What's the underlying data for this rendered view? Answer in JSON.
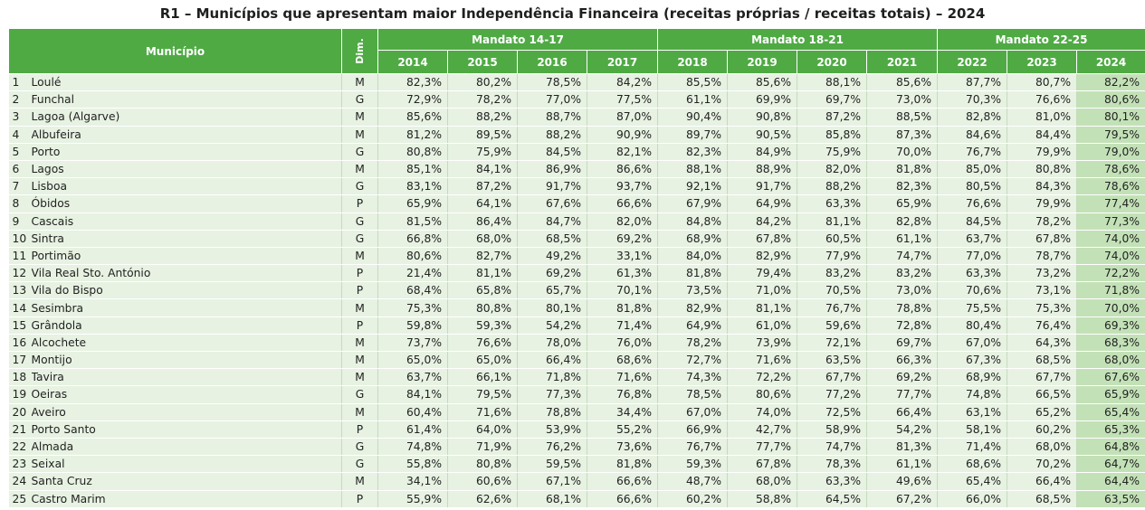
{
  "title": "R1 – Municípios que apresentam maior Independência Financeira (receitas próprias / receitas totais) – 2024",
  "colors": {
    "header_green": "#4faa44",
    "row_bg": "#e7f2e2",
    "highlight_col": "#c3e1b7"
  },
  "headers": {
    "municipio": "Município",
    "dim": "Dim.",
    "groups": [
      "Mandato 14-17",
      "Mandato 18-21",
      "Mandato 22-25"
    ],
    "years": [
      "2014",
      "2015",
      "2016",
      "2017",
      "2018",
      "2019",
      "2020",
      "2021",
      "2022",
      "2023",
      "2024"
    ]
  },
  "chart_data": {
    "type": "table",
    "title": "R1 – Municípios que apresentam maior Independência Financeira (receitas próprias / receitas totais) – 2024",
    "columns": [
      "#",
      "Município",
      "Dim.",
      "2014",
      "2015",
      "2016",
      "2017",
      "2018",
      "2019",
      "2020",
      "2021",
      "2022",
      "2023",
      "2024"
    ],
    "rows": [
      {
        "rank": "1",
        "name": "Loulé",
        "dim": "M",
        "values": [
          "82,3%",
          "80,2%",
          "78,5%",
          "84,2%",
          "85,5%",
          "85,6%",
          "88,1%",
          "85,6%",
          "87,7%",
          "80,7%",
          "82,2%"
        ]
      },
      {
        "rank": "2",
        "name": "Funchal",
        "dim": "G",
        "values": [
          "72,9%",
          "78,2%",
          "77,0%",
          "77,5%",
          "61,1%",
          "69,9%",
          "69,7%",
          "73,0%",
          "70,3%",
          "76,6%",
          "80,6%"
        ]
      },
      {
        "rank": "3",
        "name": "Lagoa (Algarve)",
        "dim": "M",
        "values": [
          "85,6%",
          "88,2%",
          "88,7%",
          "87,0%",
          "90,4%",
          "90,8%",
          "87,2%",
          "88,5%",
          "82,8%",
          "81,0%",
          "80,1%"
        ]
      },
      {
        "rank": "4",
        "name": "Albufeira",
        "dim": "M",
        "values": [
          "81,2%",
          "89,5%",
          "88,2%",
          "90,9%",
          "89,7%",
          "90,5%",
          "85,8%",
          "87,3%",
          "84,6%",
          "84,4%",
          "79,5%"
        ]
      },
      {
        "rank": "5",
        "name": "Porto",
        "dim": "G",
        "values": [
          "80,8%",
          "75,9%",
          "84,5%",
          "82,1%",
          "82,3%",
          "84,9%",
          "75,9%",
          "70,0%",
          "76,7%",
          "79,9%",
          "79,0%"
        ]
      },
      {
        "rank": "6",
        "name": "Lagos",
        "dim": "M",
        "values": [
          "85,1%",
          "84,1%",
          "86,9%",
          "86,6%",
          "88,1%",
          "88,9%",
          "82,0%",
          "81,8%",
          "85,0%",
          "80,8%",
          "78,6%"
        ]
      },
      {
        "rank": "7",
        "name": "Lisboa",
        "dim": "G",
        "values": [
          "83,1%",
          "87,2%",
          "91,7%",
          "93,7%",
          "92,1%",
          "91,7%",
          "88,2%",
          "82,3%",
          "80,5%",
          "84,3%",
          "78,6%"
        ]
      },
      {
        "rank": "8",
        "name": "Óbidos",
        "dim": "P",
        "values": [
          "65,9%",
          "64,1%",
          "67,6%",
          "66,6%",
          "67,9%",
          "64,9%",
          "63,3%",
          "65,9%",
          "76,6%",
          "79,9%",
          "77,4%"
        ]
      },
      {
        "rank": "9",
        "name": "Cascais",
        "dim": "G",
        "values": [
          "81,5%",
          "86,4%",
          "84,7%",
          "82,0%",
          "84,8%",
          "84,2%",
          "81,1%",
          "82,8%",
          "84,5%",
          "78,2%",
          "77,3%"
        ]
      },
      {
        "rank": "10",
        "name": "Sintra",
        "dim": "G",
        "values": [
          "66,8%",
          "68,0%",
          "68,5%",
          "69,2%",
          "68,9%",
          "67,8%",
          "60,5%",
          "61,1%",
          "63,7%",
          "67,8%",
          "74,0%"
        ]
      },
      {
        "rank": "11",
        "name": "Portimão",
        "dim": "M",
        "values": [
          "80,6%",
          "82,7%",
          "49,2%",
          "33,1%",
          "84,0%",
          "82,9%",
          "77,9%",
          "74,7%",
          "77,0%",
          "78,7%",
          "74,0%"
        ]
      },
      {
        "rank": "12",
        "name": "Vila Real Sto. António",
        "dim": "P",
        "values": [
          "21,4%",
          "81,1%",
          "69,2%",
          "61,3%",
          "81,8%",
          "79,4%",
          "83,2%",
          "83,2%",
          "63,3%",
          "73,2%",
          "72,2%"
        ]
      },
      {
        "rank": "13",
        "name": "Vila do Bispo",
        "dim": "P",
        "values": [
          "68,4%",
          "65,8%",
          "65,7%",
          "70,1%",
          "73,5%",
          "71,0%",
          "70,5%",
          "73,0%",
          "70,6%",
          "73,1%",
          "71,8%"
        ]
      },
      {
        "rank": "14",
        "name": "Sesimbra",
        "dim": "M",
        "values": [
          "75,3%",
          "80,8%",
          "80,1%",
          "81,8%",
          "82,9%",
          "81,1%",
          "76,7%",
          "78,8%",
          "75,5%",
          "75,3%",
          "70,0%"
        ]
      },
      {
        "rank": "15",
        "name": "Grândola",
        "dim": "P",
        "values": [
          "59,8%",
          "59,3%",
          "54,2%",
          "71,4%",
          "64,9%",
          "61,0%",
          "59,6%",
          "72,8%",
          "80,4%",
          "76,4%",
          "69,3%"
        ]
      },
      {
        "rank": "16",
        "name": "Alcochete",
        "dim": "M",
        "values": [
          "73,7%",
          "76,6%",
          "78,0%",
          "76,0%",
          "78,2%",
          "73,9%",
          "72,1%",
          "69,7%",
          "67,0%",
          "64,3%",
          "68,3%"
        ]
      },
      {
        "rank": "17",
        "name": "Montijo",
        "dim": "M",
        "values": [
          "65,0%",
          "65,0%",
          "66,4%",
          "68,6%",
          "72,7%",
          "71,6%",
          "63,5%",
          "66,3%",
          "67,3%",
          "68,5%",
          "68,0%"
        ]
      },
      {
        "rank": "18",
        "name": "Tavira",
        "dim": "M",
        "values": [
          "63,7%",
          "66,1%",
          "71,8%",
          "71,6%",
          "74,3%",
          "72,2%",
          "67,7%",
          "69,2%",
          "68,9%",
          "67,7%",
          "67,6%"
        ]
      },
      {
        "rank": "19",
        "name": "Oeiras",
        "dim": "G",
        "values": [
          "84,1%",
          "79,5%",
          "77,3%",
          "76,8%",
          "78,5%",
          "80,6%",
          "77,2%",
          "77,7%",
          "74,8%",
          "66,5%",
          "65,9%"
        ]
      },
      {
        "rank": "20",
        "name": "Aveiro",
        "dim": "M",
        "values": [
          "60,4%",
          "71,6%",
          "78,8%",
          "34,4%",
          "67,0%",
          "74,0%",
          "72,5%",
          "66,4%",
          "63,1%",
          "65,2%",
          "65,4%"
        ]
      },
      {
        "rank": "21",
        "name": "Porto Santo",
        "dim": "P",
        "values": [
          "61,4%",
          "64,0%",
          "53,9%",
          "55,2%",
          "66,9%",
          "42,7%",
          "58,9%",
          "54,2%",
          "58,1%",
          "60,2%",
          "65,3%"
        ]
      },
      {
        "rank": "22",
        "name": "Almada",
        "dim": "G",
        "values": [
          "74,8%",
          "71,9%",
          "76,2%",
          "73,6%",
          "76,7%",
          "77,7%",
          "74,7%",
          "81,3%",
          "71,4%",
          "68,0%",
          "64,8%"
        ]
      },
      {
        "rank": "23",
        "name": "Seixal",
        "dim": "G",
        "values": [
          "55,8%",
          "80,8%",
          "59,5%",
          "81,8%",
          "59,3%",
          "67,8%",
          "78,3%",
          "61,1%",
          "68,6%",
          "70,2%",
          "64,7%"
        ]
      },
      {
        "rank": "24",
        "name": "Santa Cruz",
        "dim": "M",
        "values": [
          "34,1%",
          "60,6%",
          "67,1%",
          "66,6%",
          "48,7%",
          "68,0%",
          "63,3%",
          "49,6%",
          "65,4%",
          "66,4%",
          "64,4%"
        ]
      },
      {
        "rank": "25",
        "name": "Castro Marim",
        "dim": "P",
        "values": [
          "55,9%",
          "62,6%",
          "68,1%",
          "66,6%",
          "60,2%",
          "58,8%",
          "64,5%",
          "67,2%",
          "66,0%",
          "68,5%",
          "63,5%"
        ]
      }
    ]
  }
}
